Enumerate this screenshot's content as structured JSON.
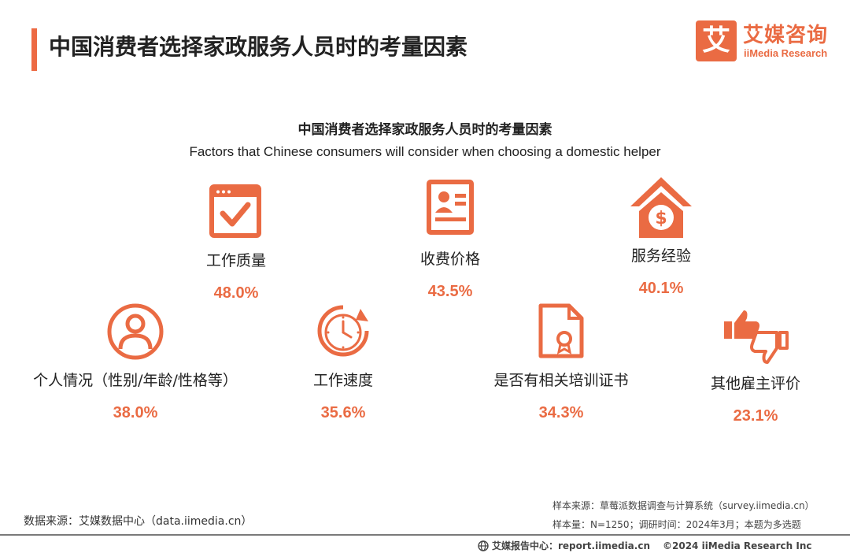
{
  "header": {
    "title": "中国消费者选择家政服务人员时的考量因素",
    "logo_mark": "艾",
    "logo_cn": "艾媒咨询",
    "logo_en": "iiMedia Research"
  },
  "chart_data": {
    "type": "table",
    "title": "中国消费者选择家政服务人员时的考量因素",
    "subtitle": "Factors that Chinese consumers will consider when choosing a domestic helper",
    "categories": [
      "工作质量",
      "收费价格",
      "服务经验",
      "个人情况（性别/年龄/性格等）",
      "工作速度",
      "是否有相关培训证书",
      "其他雇主评价"
    ],
    "values": [
      48.0,
      43.5,
      40.1,
      38.0,
      35.6,
      34.3,
      23.1
    ],
    "unit": "%",
    "value_labels": [
      "48.0%",
      "43.5%",
      "40.1%",
      "38.0%",
      "35.6%",
      "34.3%",
      "23.1%"
    ],
    "icons": [
      "checkbox-window-icon",
      "id-card-icon",
      "house-dollar-icon",
      "person-icon",
      "clock-icon",
      "certificate-icon",
      "thumbs-up-down-icon"
    ],
    "accent_color": "#ea6b43"
  },
  "footer": {
    "source_left": "数据来源：艾媒数据中心（data.iimedia.cn）",
    "sample_source": "样本来源：草莓派数据调查与计算系统（survey.iimedia.cn）",
    "sample_info": "样本量：N=1250；调研时间：2024年3月；本题为多选题",
    "report_center": "艾媒报告中心：report.iimedia.cn",
    "copyright": "©2024  iiMedia Research  Inc"
  }
}
